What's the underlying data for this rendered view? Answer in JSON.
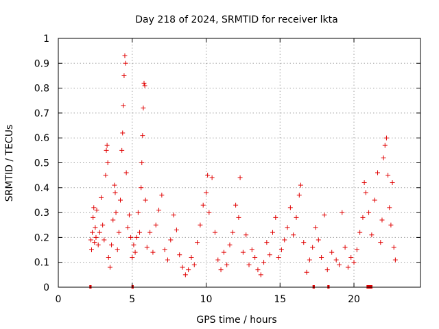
{
  "chart_data": {
    "type": "scatter",
    "title": "Day 218 of 2024, SRMTID for receiver lkta",
    "xlabel": "GPS time / hours",
    "ylabel": "SRMTID / TECUs",
    "xlim": [
      0,
      24.5
    ],
    "ylim": [
      0,
      1
    ],
    "xticks": [
      0,
      5,
      10,
      15,
      20
    ],
    "xtick_labels": [
      "0",
      "5",
      "10",
      "15",
      "20"
    ],
    "yticks": [
      0,
      0.1,
      0.2,
      0.3,
      0.4,
      0.5,
      0.6,
      0.7,
      0.8,
      0.9,
      1
    ],
    "ytick_labels": [
      "0",
      "0.1",
      "0.2",
      "0.3",
      "0.4",
      "0.5",
      "0.6",
      "0.7",
      "0.8",
      "0.9",
      "1"
    ],
    "grid": true,
    "marker": "plus",
    "color": "#e00000",
    "series": [
      {
        "name": "SRMTID",
        "points": [
          [
            2.2,
            0.19
          ],
          [
            2.25,
            0.15
          ],
          [
            2.3,
            0.22
          ],
          [
            2.35,
            0.28
          ],
          [
            2.4,
            0.32
          ],
          [
            2.45,
            0.18
          ],
          [
            2.5,
            0.24
          ],
          [
            2.55,
            0.2
          ],
          [
            2.6,
            0.31
          ],
          [
            2.7,
            0.17
          ],
          [
            2.8,
            0.22
          ],
          [
            2.9,
            0.36
          ],
          [
            3.0,
            0.25
          ],
          [
            3.1,
            0.19
          ],
          [
            3.2,
            0.45
          ],
          [
            3.25,
            0.55
          ],
          [
            3.3,
            0.57
          ],
          [
            3.35,
            0.5
          ],
          [
            3.4,
            0.12
          ],
          [
            3.5,
            0.08
          ],
          [
            3.6,
            0.17
          ],
          [
            3.7,
            0.27
          ],
          [
            3.8,
            0.41
          ],
          [
            3.85,
            0.38
          ],
          [
            3.9,
            0.3
          ],
          [
            4.0,
            0.15
          ],
          [
            4.1,
            0.22
          ],
          [
            4.2,
            0.35
          ],
          [
            4.3,
            0.55
          ],
          [
            4.35,
            0.62
          ],
          [
            4.4,
            0.73
          ],
          [
            4.45,
            0.85
          ],
          [
            4.5,
            0.93
          ],
          [
            4.55,
            0.9
          ],
          [
            4.6,
            0.46
          ],
          [
            4.7,
            0.24
          ],
          [
            4.8,
            0.29
          ],
          [
            4.9,
            0.2
          ],
          [
            5.0,
            0.12
          ],
          [
            5.1,
            0.17
          ],
          [
            5.2,
            0.14
          ],
          [
            5.3,
            0.2
          ],
          [
            5.4,
            0.3
          ],
          [
            5.5,
            0.22
          ],
          [
            5.6,
            0.4
          ],
          [
            5.65,
            0.5
          ],
          [
            5.7,
            0.61
          ],
          [
            5.75,
            0.72
          ],
          [
            5.8,
            0.82
          ],
          [
            5.85,
            0.81
          ],
          [
            5.9,
            0.35
          ],
          [
            6.0,
            0.16
          ],
          [
            6.2,
            0.22
          ],
          [
            6.4,
            0.14
          ],
          [
            6.6,
            0.25
          ],
          [
            6.8,
            0.31
          ],
          [
            7.0,
            0.37
          ],
          [
            7.2,
            0.15
          ],
          [
            7.4,
            0.11
          ],
          [
            7.6,
            0.19
          ],
          [
            7.8,
            0.29
          ],
          [
            8.0,
            0.23
          ],
          [
            8.2,
            0.13
          ],
          [
            8.4,
            0.08
          ],
          [
            8.6,
            0.05
          ],
          [
            8.8,
            0.07
          ],
          [
            9.0,
            0.12
          ],
          [
            9.2,
            0.09
          ],
          [
            9.4,
            0.18
          ],
          [
            9.6,
            0.25
          ],
          [
            9.8,
            0.33
          ],
          [
            10.0,
            0.38
          ],
          [
            10.1,
            0.45
          ],
          [
            10.2,
            0.3
          ],
          [
            10.4,
            0.44
          ],
          [
            10.6,
            0.22
          ],
          [
            10.8,
            0.11
          ],
          [
            11.0,
            0.07
          ],
          [
            11.2,
            0.14
          ],
          [
            11.4,
            0.09
          ],
          [
            11.6,
            0.17
          ],
          [
            11.8,
            0.22
          ],
          [
            12.0,
            0.33
          ],
          [
            12.2,
            0.28
          ],
          [
            12.3,
            0.44
          ],
          [
            12.5,
            0.14
          ],
          [
            12.7,
            0.21
          ],
          [
            12.9,
            0.09
          ],
          [
            13.1,
            0.15
          ],
          [
            13.3,
            0.12
          ],
          [
            13.5,
            0.07
          ],
          [
            13.7,
            0.05
          ],
          [
            13.9,
            0.1
          ],
          [
            14.1,
            0.18
          ],
          [
            14.3,
            0.13
          ],
          [
            14.5,
            0.22
          ],
          [
            14.7,
            0.28
          ],
          [
            14.9,
            0.12
          ],
          [
            15.1,
            0.15
          ],
          [
            15.3,
            0.19
          ],
          [
            15.5,
            0.24
          ],
          [
            15.7,
            0.32
          ],
          [
            15.9,
            0.21
          ],
          [
            16.1,
            0.28
          ],
          [
            16.3,
            0.37
          ],
          [
            16.4,
            0.41
          ],
          [
            16.6,
            0.18
          ],
          [
            16.8,
            0.06
          ],
          [
            17.0,
            0.11
          ],
          [
            17.2,
            0.16
          ],
          [
            17.4,
            0.24
          ],
          [
            17.6,
            0.19
          ],
          [
            17.8,
            0.12
          ],
          [
            18.0,
            0.29
          ],
          [
            18.2,
            0.07
          ],
          [
            18.5,
            0.14
          ],
          [
            18.8,
            0.11
          ],
          [
            19.0,
            0.09
          ],
          [
            19.2,
            0.3
          ],
          [
            19.4,
            0.16
          ],
          [
            19.6,
            0.08
          ],
          [
            19.8,
            0.12
          ],
          [
            20.0,
            0.1
          ],
          [
            20.2,
            0.15
          ],
          [
            20.4,
            0.22
          ],
          [
            20.6,
            0.28
          ],
          [
            20.7,
            0.42
          ],
          [
            20.8,
            0.38
          ],
          [
            21.0,
            0.3
          ],
          [
            21.2,
            0.21
          ],
          [
            21.4,
            0.35
          ],
          [
            21.6,
            0.46
          ],
          [
            21.8,
            0.18
          ],
          [
            21.9,
            0.27
          ],
          [
            22.0,
            0.52
          ],
          [
            22.1,
            0.57
          ],
          [
            22.2,
            0.6
          ],
          [
            22.3,
            0.45
          ],
          [
            22.4,
            0.32
          ],
          [
            22.5,
            0.25
          ],
          [
            22.6,
            0.42
          ],
          [
            22.7,
            0.16
          ],
          [
            22.8,
            0.11
          ]
        ]
      }
    ],
    "gaps": [
      [
        2.1,
        2.25
      ],
      [
        4.95,
        5.1
      ],
      [
        17.2,
        17.35
      ],
      [
        18.2,
        18.35
      ],
      [
        20.85,
        21.25
      ]
    ]
  }
}
